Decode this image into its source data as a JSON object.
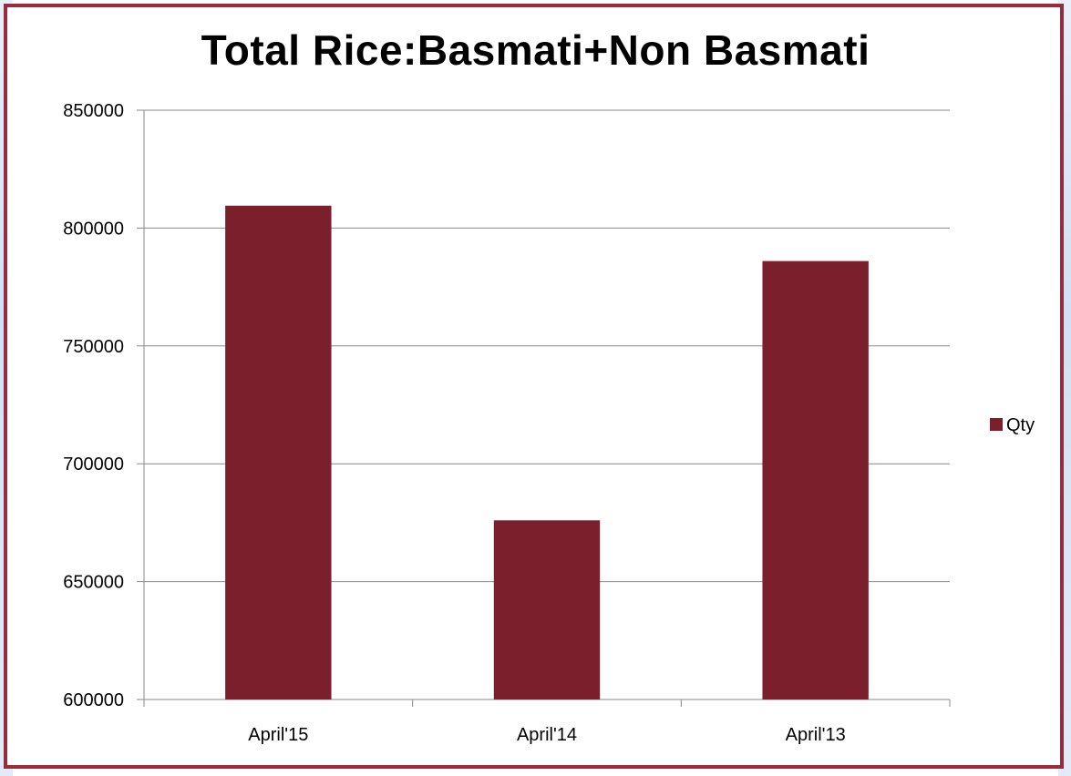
{
  "chart_data": {
    "type": "bar",
    "title": "Total Rice:Basmati+Non Basmati",
    "categories": [
      "April'15",
      "April'14",
      "April'13"
    ],
    "series": [
      {
        "name": "Qty",
        "color": "#7a1f2b",
        "values": [
          809500,
          676000,
          786000
        ]
      }
    ],
    "ylim": [
      600000,
      850000
    ],
    "yticks": [
      600000,
      650000,
      700000,
      750000,
      800000,
      850000
    ],
    "grid": true,
    "legend": "right",
    "frame_color": "#9b2a3a",
    "gridline_color": "#888888"
  }
}
